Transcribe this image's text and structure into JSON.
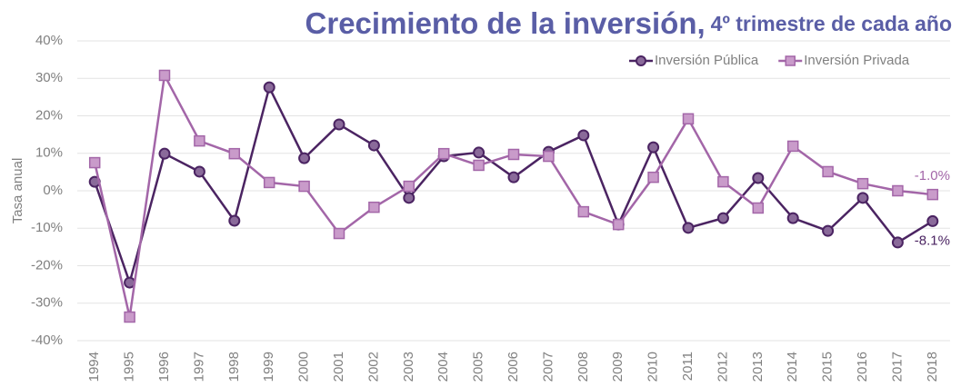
{
  "chart_data": {
    "type": "line",
    "title": "Crecimiento de la inversión,",
    "subtitle": "4º trimestre de cada año",
    "y_label": "Tasa anual",
    "categories": [
      "1994",
      "1995",
      "1996",
      "1997",
      "1998",
      "1999",
      "2000",
      "2001",
      "2002",
      "2003",
      "2004",
      "2005",
      "2006",
      "2007",
      "2008",
      "2009",
      "2010",
      "2011",
      "2012",
      "2013",
      "2014",
      "2015",
      "2016",
      "2017",
      "2018"
    ],
    "series": [
      {
        "name": "Inversión Pública",
        "color": "#4b2462",
        "marker": "circle",
        "marker_fill": "#8a6a9a",
        "values": [
          2.4,
          -24.5,
          9.9,
          5.1,
          -8,
          27.6,
          8.7,
          17.7,
          12.1,
          -1.9,
          9.2,
          10.2,
          3.6,
          10.4,
          14.8,
          -9,
          11.6,
          -9.9,
          -7.3,
          3.4,
          -7.3,
          -10.7,
          -1.9,
          -13.8,
          -8.1
        ],
        "end_label": "-8.1%"
      },
      {
        "name": "Inversión Privada",
        "color": "#a366a8",
        "marker": "square",
        "marker_fill": "#c99bca",
        "values": [
          7.5,
          -33.7,
          30.8,
          13.3,
          9.9,
          2.2,
          1.2,
          -11.4,
          -4.4,
          1.2,
          9.9,
          6.8,
          9.7,
          9.2,
          -5.6,
          -9,
          3.6,
          19.2,
          2.4,
          -4.6,
          11.9,
          5.1,
          1.9,
          0,
          -1.0
        ],
        "end_label": "-1.0%"
      }
    ],
    "ylim": [
      -40,
      40
    ],
    "yticks": [
      {
        "value": -40,
        "label": "-40%"
      },
      {
        "value": -30,
        "label": "-30%"
      },
      {
        "value": -20,
        "label": "-20%"
      },
      {
        "value": -10,
        "label": "-10%"
      },
      {
        "value": 0,
        "label": "0%"
      },
      {
        "value": 10,
        "label": "10%"
      },
      {
        "value": 20,
        "label": "20%"
      },
      {
        "value": 30,
        "label": "30%"
      },
      {
        "value": 40,
        "label": "40%"
      }
    ],
    "grid": true,
    "legend": "top-right"
  }
}
